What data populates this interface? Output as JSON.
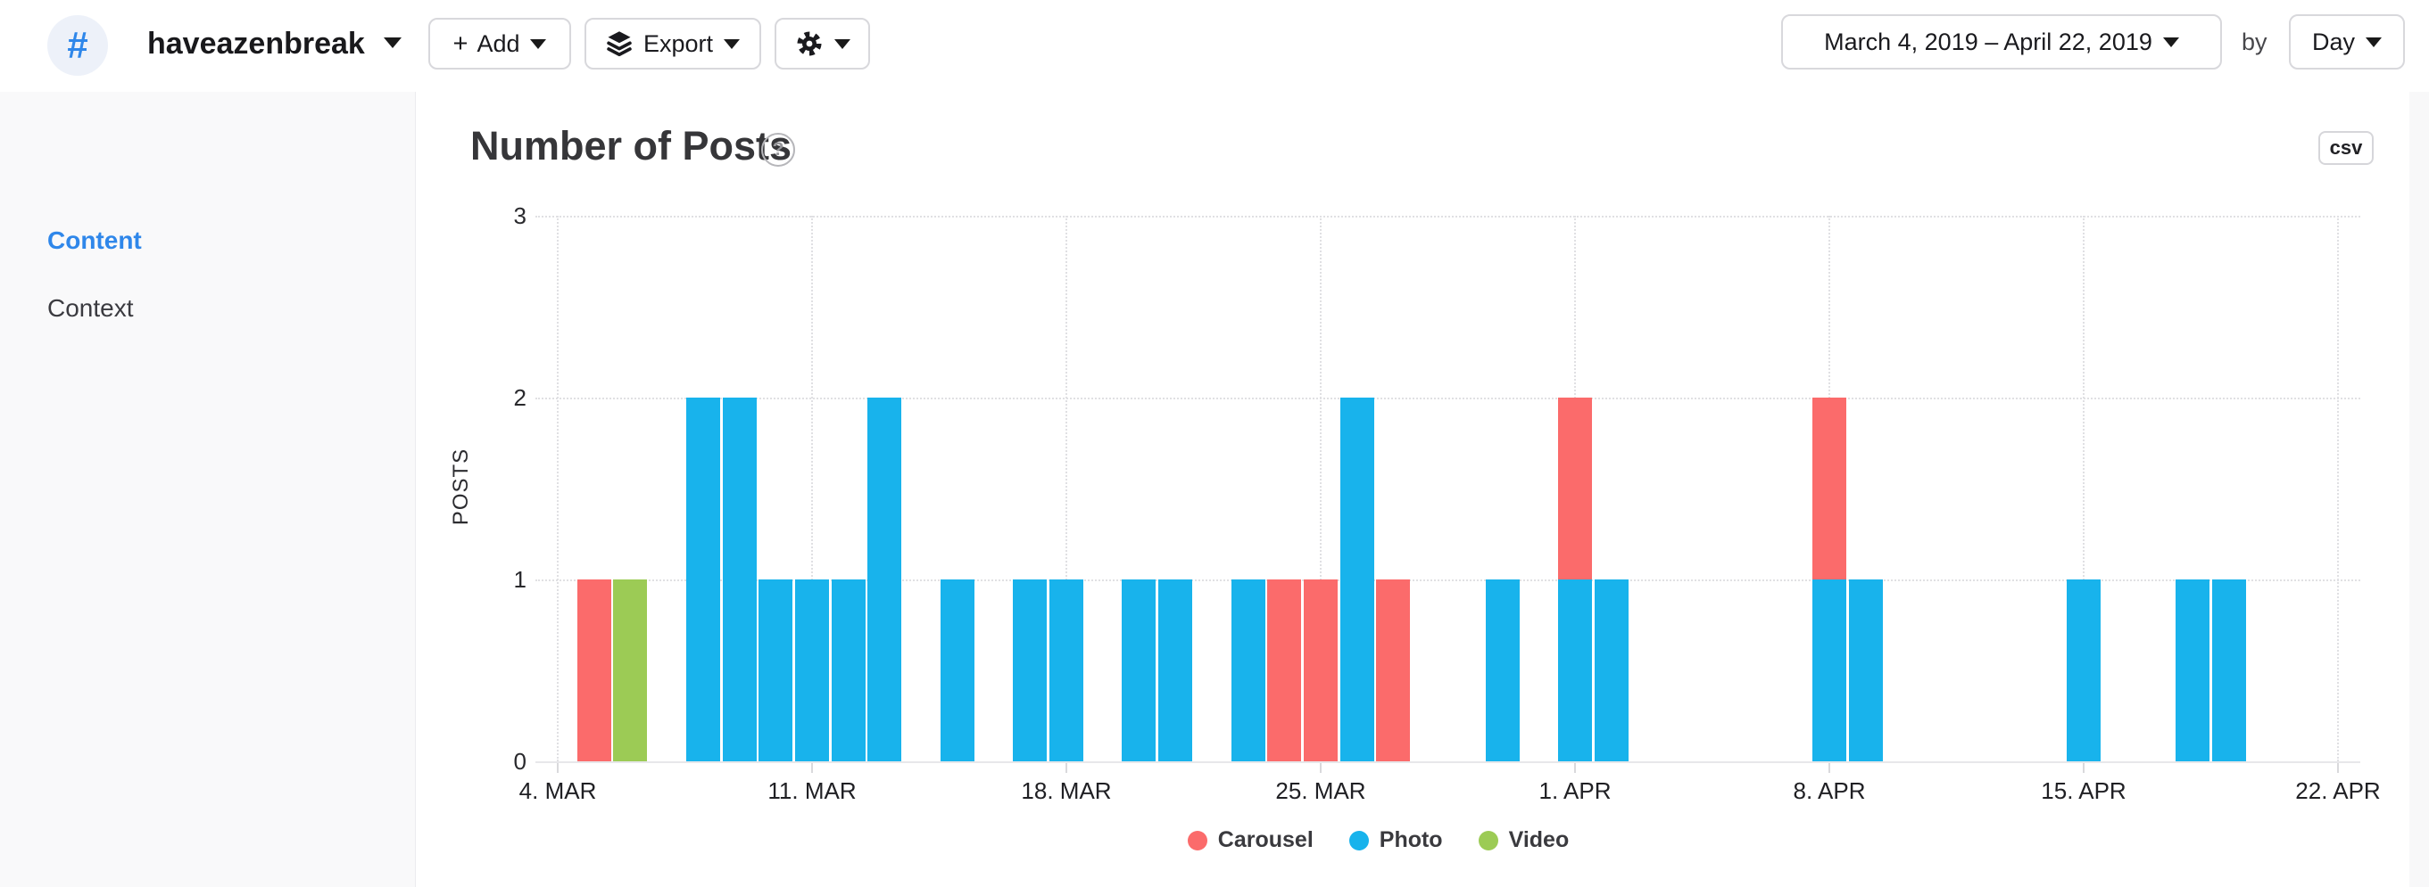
{
  "header": {
    "hashtag_symbol": "#",
    "hashtag": "haveazenbreak",
    "add_plus": "+",
    "add_button": "Add",
    "export_button": "Export",
    "date_range": "March 4, 2019 – April 22, 2019",
    "by_label": "by",
    "granularity": "Day"
  },
  "sidebar": {
    "items": [
      {
        "label": "Content",
        "active": true
      },
      {
        "label": "Context",
        "active": false
      }
    ]
  },
  "panel": {
    "title": "Number of Posts",
    "help": "?",
    "csv_button": "csv"
  },
  "chart_data": {
    "type": "bar",
    "stacked": true,
    "title": "Number of Posts",
    "xlabel": "",
    "ylabel": "POSTS",
    "ylim": [
      0,
      3
    ],
    "y_ticks": [
      0,
      1,
      2,
      3
    ],
    "x_range": [
      "2019-03-04",
      "2019-04-22"
    ],
    "x_tick_labels": [
      "4. MAR",
      "11. MAR",
      "18. MAR",
      "25. MAR",
      "1. APR",
      "8. APR",
      "15. APR",
      "22. APR"
    ],
    "grid": "dotted",
    "legend_position": "bottom",
    "series": [
      {
        "name": "Carousel",
        "color": "#fb6b6b"
      },
      {
        "name": "Photo",
        "color": "#18b3ec"
      },
      {
        "name": "Video",
        "color": "#9ccb55"
      }
    ],
    "bars": [
      {
        "date": "2019-03-05",
        "day_index": 1,
        "segments": [
          {
            "series": "Carousel",
            "value": 1
          }
        ]
      },
      {
        "date": "2019-03-06",
        "day_index": 2,
        "segments": [
          {
            "series": "Video",
            "value": 1
          }
        ]
      },
      {
        "date": "2019-03-08",
        "day_index": 4,
        "segments": [
          {
            "series": "Photo",
            "value": 2
          }
        ]
      },
      {
        "date": "2019-03-09",
        "day_index": 5,
        "segments": [
          {
            "series": "Photo",
            "value": 2
          }
        ]
      },
      {
        "date": "2019-03-10",
        "day_index": 6,
        "segments": [
          {
            "series": "Photo",
            "value": 1
          }
        ]
      },
      {
        "date": "2019-03-11",
        "day_index": 7,
        "segments": [
          {
            "series": "Photo",
            "value": 1
          }
        ]
      },
      {
        "date": "2019-03-12",
        "day_index": 8,
        "segments": [
          {
            "series": "Photo",
            "value": 1
          }
        ]
      },
      {
        "date": "2019-03-13",
        "day_index": 9,
        "segments": [
          {
            "series": "Photo",
            "value": 2
          }
        ]
      },
      {
        "date": "2019-03-15",
        "day_index": 11,
        "segments": [
          {
            "series": "Photo",
            "value": 1
          }
        ]
      },
      {
        "date": "2019-03-17",
        "day_index": 13,
        "segments": [
          {
            "series": "Photo",
            "value": 1
          }
        ]
      },
      {
        "date": "2019-03-18",
        "day_index": 14,
        "segments": [
          {
            "series": "Photo",
            "value": 1
          }
        ]
      },
      {
        "date": "2019-03-20",
        "day_index": 16,
        "segments": [
          {
            "series": "Photo",
            "value": 1
          }
        ]
      },
      {
        "date": "2019-03-21",
        "day_index": 17,
        "segments": [
          {
            "series": "Photo",
            "value": 1
          }
        ]
      },
      {
        "date": "2019-03-23",
        "day_index": 19,
        "segments": [
          {
            "series": "Photo",
            "value": 1
          }
        ]
      },
      {
        "date": "2019-03-24",
        "day_index": 20,
        "segments": [
          {
            "series": "Carousel",
            "value": 1
          }
        ]
      },
      {
        "date": "2019-03-25",
        "day_index": 21,
        "segments": [
          {
            "series": "Carousel",
            "value": 1
          }
        ]
      },
      {
        "date": "2019-03-26",
        "day_index": 22,
        "segments": [
          {
            "series": "Photo",
            "value": 2
          }
        ]
      },
      {
        "date": "2019-03-27",
        "day_index": 23,
        "segments": [
          {
            "series": "Carousel",
            "value": 1
          }
        ]
      },
      {
        "date": "2019-03-30",
        "day_index": 26,
        "segments": [
          {
            "series": "Photo",
            "value": 1
          }
        ]
      },
      {
        "date": "2019-04-01",
        "day_index": 28,
        "segments": [
          {
            "series": "Photo",
            "value": 1
          },
          {
            "series": "Carousel",
            "value": 1
          }
        ]
      },
      {
        "date": "2019-04-02",
        "day_index": 29,
        "segments": [
          {
            "series": "Photo",
            "value": 1
          }
        ]
      },
      {
        "date": "2019-04-08",
        "day_index": 35,
        "segments": [
          {
            "series": "Photo",
            "value": 1
          },
          {
            "series": "Carousel",
            "value": 1
          }
        ]
      },
      {
        "date": "2019-04-09",
        "day_index": 36,
        "segments": [
          {
            "series": "Photo",
            "value": 1
          }
        ]
      },
      {
        "date": "2019-04-15",
        "day_index": 42,
        "segments": [
          {
            "series": "Photo",
            "value": 1
          }
        ]
      },
      {
        "date": "2019-04-18",
        "day_index": 45,
        "segments": [
          {
            "series": "Photo",
            "value": 1
          }
        ]
      },
      {
        "date": "2019-04-19",
        "day_index": 46,
        "segments": [
          {
            "series": "Photo",
            "value": 1
          }
        ]
      }
    ]
  }
}
